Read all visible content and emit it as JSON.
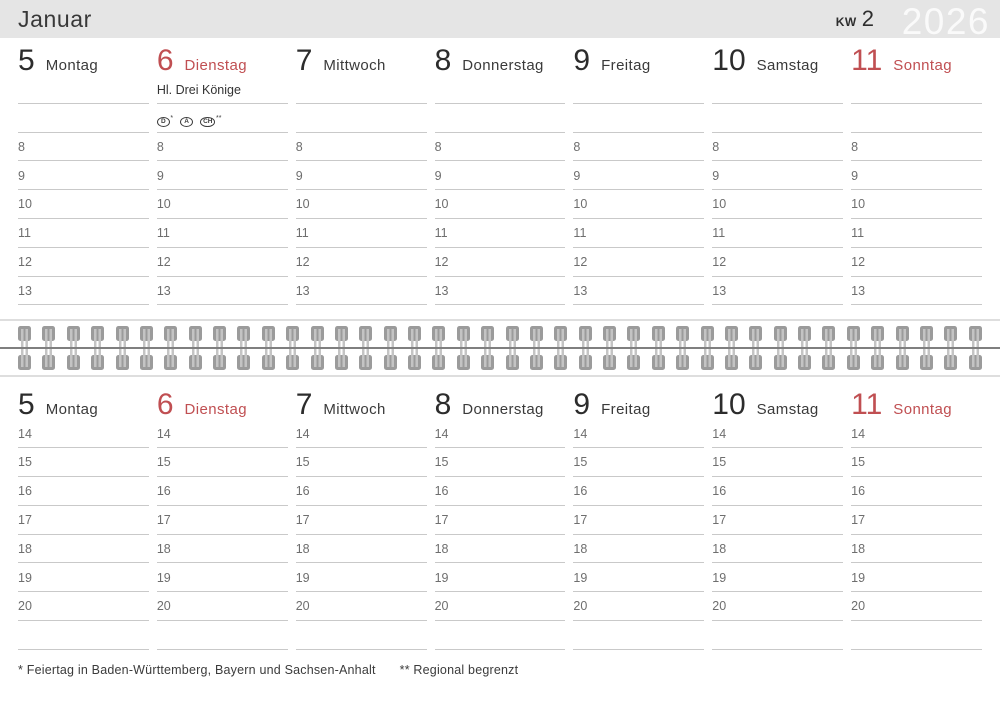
{
  "header": {
    "month": "Januar",
    "week_label": "KW",
    "week_number": "2",
    "year": "2026"
  },
  "colors": {
    "accent_red": "#c04f52",
    "header_bg": "#e5e5e5",
    "line_gray": "#c9c9c9",
    "binding_gray": "#9b9b9b"
  },
  "days": [
    {
      "num": "5",
      "name": "Montag",
      "red": false
    },
    {
      "num": "6",
      "name": "Dienstag",
      "red": true,
      "holiday": "Hl. Drei Könige",
      "badges": [
        {
          "label": "D",
          "stars": "*"
        },
        {
          "label": "A",
          "stars": ""
        },
        {
          "label": "CH",
          "stars": "**"
        }
      ]
    },
    {
      "num": "7",
      "name": "Mittwoch",
      "red": false
    },
    {
      "num": "8",
      "name": "Donnerstag",
      "red": false
    },
    {
      "num": "9",
      "name": "Freitag",
      "red": false
    },
    {
      "num": "10",
      "name": "Samstag",
      "red": false
    },
    {
      "num": "11",
      "name": "Sonntag",
      "red": true
    }
  ],
  "top_hours": [
    "",
    "",
    "8",
    "9",
    "10",
    "11",
    "12",
    "13"
  ],
  "bottom_hours": [
    "14",
    "15",
    "16",
    "17",
    "18",
    "19",
    "20",
    ""
  ],
  "footer": {
    "note1": "* Feiertag in Baden-Württemberg, Bayern und Sachsen-Anhalt",
    "note2": "** Regional begrenzt"
  }
}
